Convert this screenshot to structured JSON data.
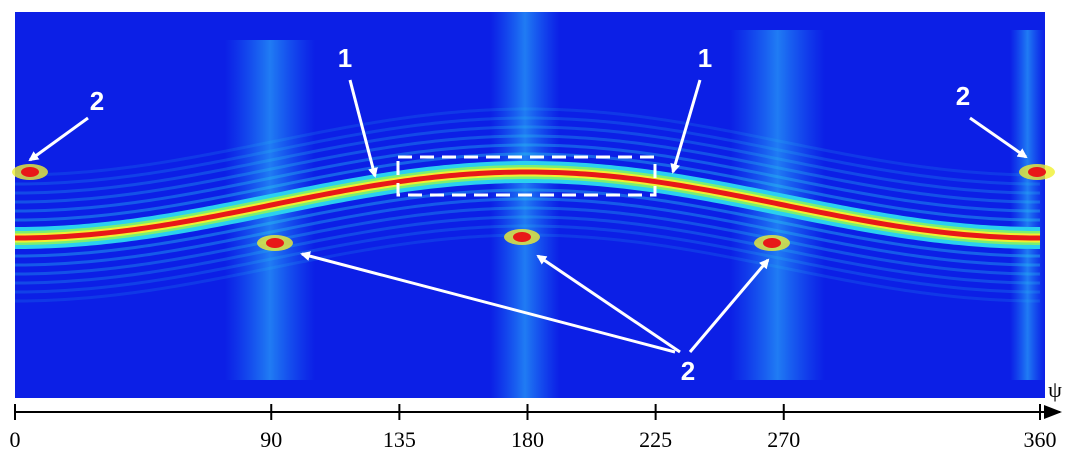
{
  "chart_data": {
    "type": "heatmap",
    "x_label": "ψ",
    "xlim": [
      0,
      360
    ],
    "xticks": [
      0,
      90,
      135,
      180,
      225,
      270,
      360
    ],
    "annotations": [
      "1",
      "1",
      "2",
      "2",
      "2"
    ]
  }
}
